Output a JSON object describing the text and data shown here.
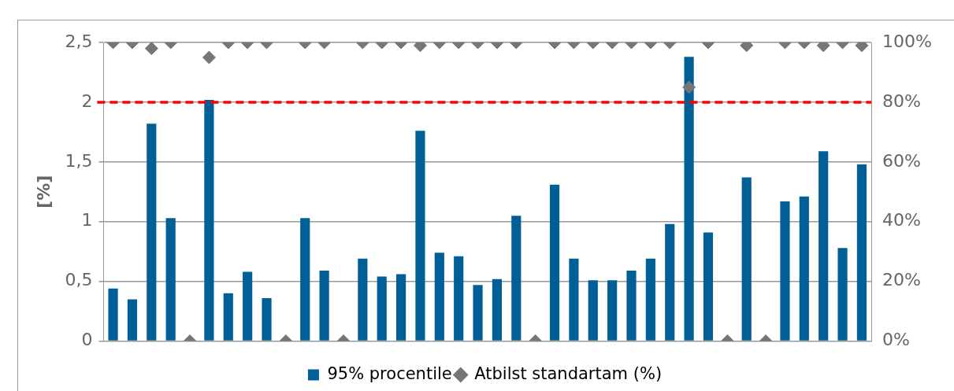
{
  "chart_data": {
    "type": "bar",
    "ylabel": "[%]",
    "categories": [
      null,
      null,
      null,
      null,
      null,
      null,
      null,
      null,
      null,
      null,
      null,
      null,
      null,
      null,
      null,
      null,
      null,
      null,
      null,
      null,
      null,
      null,
      null,
      null,
      null,
      null,
      null,
      null,
      null,
      null,
      null,
      null,
      null,
      null,
      null,
      null,
      null,
      null,
      null,
      null
    ],
    "series": [
      {
        "name": "95% procentile",
        "color": "#005f97",
        "values": [
          0.44,
          0.35,
          1.82,
          1.03,
          0,
          2.02,
          0.4,
          0.58,
          0.36,
          0,
          1.03,
          0.59,
          0,
          0.69,
          0.54,
          0.56,
          1.76,
          0.74,
          0.71,
          0.47,
          0.52,
          1.05,
          0,
          1.31,
          0.69,
          0.51,
          0.51,
          0.59,
          0.69,
          0.98,
          2.38,
          0.91,
          0,
          1.37,
          0,
          1.17,
          1.21,
          1.59,
          0.78,
          1.48
        ]
      },
      {
        "name": "Atbilst standartam (%)",
        "type": "scatter",
        "axis": "y2",
        "color": "#75767a",
        "values": [
          100,
          100,
          98,
          100,
          0,
          95,
          100,
          100,
          100,
          0,
          100,
          100,
          0,
          100,
          100,
          100,
          99,
          100,
          100,
          100,
          100,
          100,
          0,
          100,
          100,
          100,
          100,
          100,
          100,
          100,
          85,
          100,
          0,
          99,
          0,
          100,
          100,
          99,
          100,
          99
        ]
      }
    ],
    "ylim": [
      0,
      2.5
    ],
    "yticks": [
      0,
      {
        "value": 0.5,
        "label": "0,5"
      },
      1,
      {
        "value": 1.5,
        "label": "1,5"
      },
      2,
      {
        "value": 2.5,
        "label": "2,5"
      }
    ],
    "y2lim": [
      0,
      100
    ],
    "y2ticks": [
      {
        "value": 0,
        "label": "0%"
      },
      {
        "value": 20,
        "label": "20%"
      },
      {
        "value": 40,
        "label": "40%"
      },
      {
        "value": 60,
        "label": "60%"
      },
      {
        "value": 80,
        "label": "80%"
      },
      {
        "value": 100,
        "label": "100%"
      }
    ],
    "ref_lines": [
      {
        "axis": "y",
        "value": 2,
        "color": "#ff0000",
        "line_style": "dashed"
      }
    ],
    "grid": "y",
    "legend": "bottom",
    "marker": "diamond"
  }
}
